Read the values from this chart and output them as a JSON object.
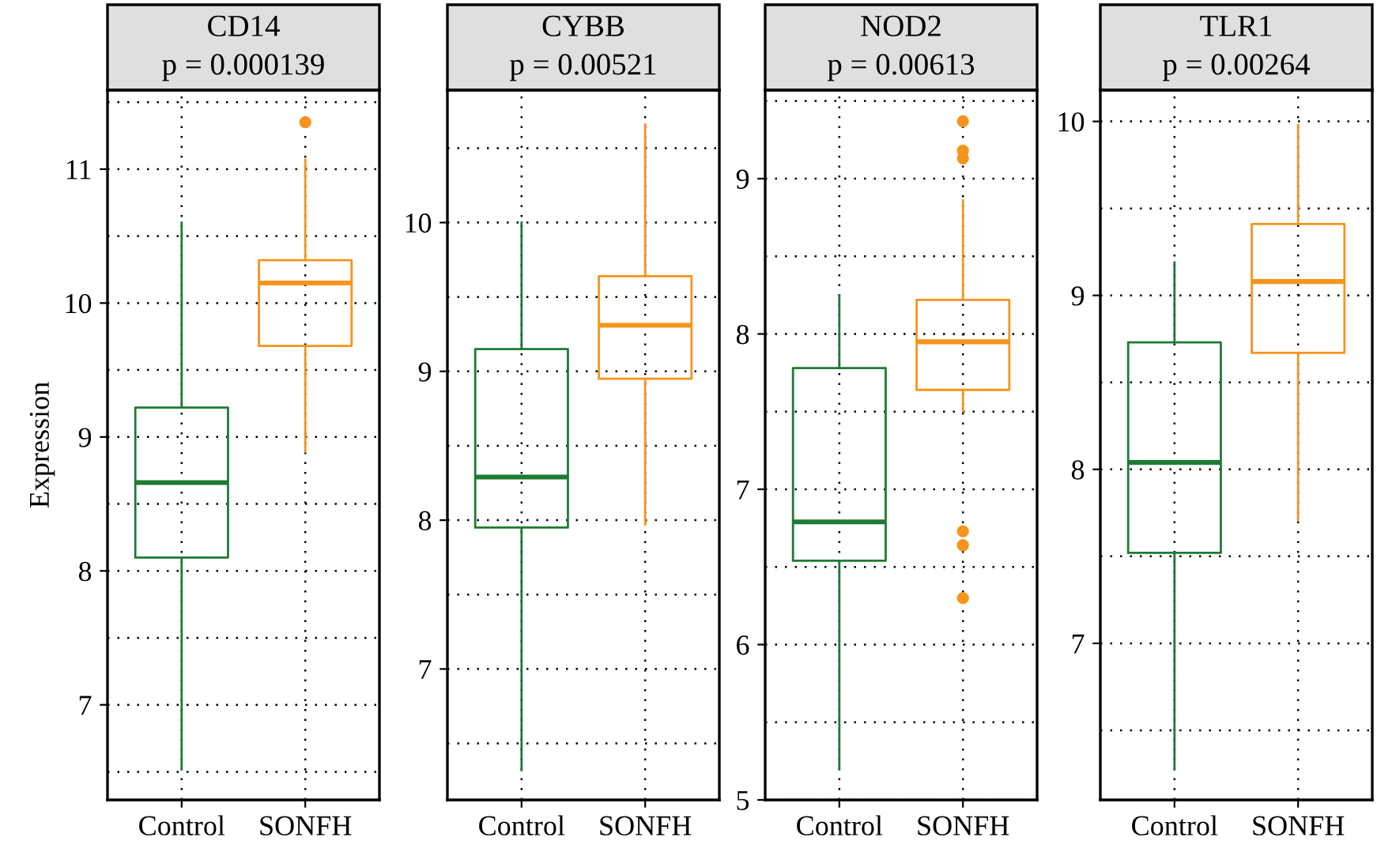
{
  "chart_data": [
    {
      "type": "box",
      "title": "CD14",
      "subtitle": "p = 0.000139",
      "ylabel": "Expression",
      "categories": [
        "Control",
        "SONFH"
      ],
      "colors": [
        "#1e7a34",
        "#f7941d"
      ],
      "grid": true,
      "ylim": [
        6.29,
        11.59
      ],
      "yticks": [
        {
          "value": 6.5,
          "label": null
        },
        7,
        {
          "value": 7.5,
          "label": null
        },
        8,
        {
          "value": 8.5,
          "label": null
        },
        9,
        {
          "value": 9.5,
          "label": null
        },
        10,
        {
          "value": 10.5,
          "label": null
        },
        11,
        {
          "value": 11.5,
          "label": null
        }
      ],
      "boxes": [
        {
          "low": 6.52,
          "q1": 8.1,
          "median": 8.66,
          "q3": 9.22,
          "high": 10.6
        },
        {
          "low": 8.89,
          "q1": 9.68,
          "median": 10.15,
          "q3": 10.32,
          "high": 11.07,
          "outliers": [
            11.35
          ]
        }
      ]
    },
    {
      "type": "box",
      "title": "CYBB",
      "subtitle": "p = 0.00521",
      "categories": [
        "Control",
        "SONFH"
      ],
      "colors": [
        "#1e7a34",
        "#f7941d"
      ],
      "grid": true,
      "ylim": [
        6.12,
        10.89
      ],
      "yticks": [
        {
          "value": 6.5,
          "label": null
        },
        7,
        {
          "value": 7.5,
          "label": null
        },
        8,
        {
          "value": 8.5,
          "label": null
        },
        9,
        {
          "value": 9.5,
          "label": null
        },
        10,
        {
          "value": 10.5,
          "label": null
        }
      ],
      "boxes": [
        {
          "low": 6.32,
          "q1": 7.95,
          "median": 8.29,
          "q3": 9.15,
          "high": 10.0
        },
        {
          "low": 7.97,
          "q1": 8.95,
          "median": 9.31,
          "q3": 9.64,
          "high": 10.66
        }
      ]
    },
    {
      "type": "box",
      "title": "NOD2",
      "subtitle": "p = 0.00613",
      "categories": [
        "Control",
        "SONFH"
      ],
      "colors": [
        "#1e7a34",
        "#f7941d"
      ],
      "grid": true,
      "ylim": [
        5,
        9.57
      ],
      "yticks": [
        5,
        {
          "value": 5.5,
          "label": null
        },
        6,
        {
          "value": 6.5,
          "label": null
        },
        7,
        {
          "value": 7.5,
          "label": null
        },
        8,
        {
          "value": 8.5,
          "label": null
        },
        9,
        {
          "value": 9.5,
          "label": null
        }
      ],
      "boxes": [
        {
          "low": 5.2,
          "q1": 6.54,
          "median": 6.79,
          "q3": 7.78,
          "high": 8.25
        },
        {
          "low": 7.5,
          "q1": 7.64,
          "median": 7.95,
          "q3": 8.22,
          "high": 8.86,
          "outliers": [
            9.37,
            9.18,
            9.13,
            6.73,
            6.64,
            6.3
          ]
        }
      ]
    },
    {
      "type": "box",
      "title": "TLR1",
      "subtitle": "p = 0.00264",
      "categories": [
        "Control",
        "SONFH"
      ],
      "colors": [
        "#1e7a34",
        "#f7941d"
      ],
      "grid": true,
      "ylim": [
        6.1,
        10.18
      ],
      "yticks": [
        {
          "value": 6.5,
          "label": null
        },
        7,
        {
          "value": 7.5,
          "label": null
        },
        8,
        {
          "value": 8.5,
          "label": null
        },
        9,
        {
          "value": 9.5,
          "label": null
        },
        10
      ],
      "boxes": [
        {
          "low": 6.28,
          "q1": 7.52,
          "median": 8.04,
          "q3": 8.73,
          "high": 9.19
        },
        {
          "low": 7.71,
          "q1": 8.67,
          "median": 9.08,
          "q3": 9.41,
          "high": 9.98
        }
      ]
    }
  ]
}
